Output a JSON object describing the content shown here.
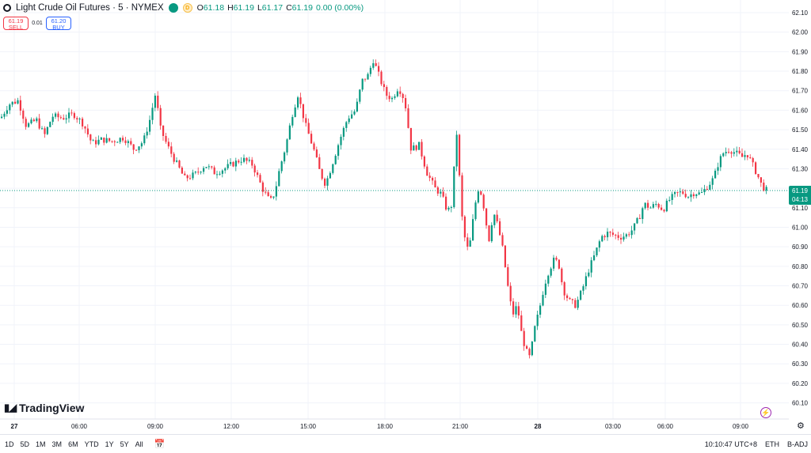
{
  "header": {
    "title": "Light Crude Oil Futures · 5 · NYMEX",
    "badge_green": "",
    "badge_d": "D",
    "ohlc": {
      "o_label": "O",
      "o_value": "61.18",
      "h_label": "H",
      "h_value": "61.19",
      "l_label": "L",
      "l_value": "61.17",
      "c_label": "C",
      "c_value": "61.19",
      "change": "0.00 (0.00%)"
    }
  },
  "trade": {
    "sell_price": "61.19",
    "sell_label": "SELL",
    "spread": "0.01",
    "buy_price": "61.20",
    "buy_label": "BUY"
  },
  "price_axis": {
    "ticks": [
      "62.10",
      "62.00",
      "61.90",
      "61.80",
      "61.70",
      "61.60",
      "61.50",
      "61.40",
      "61.30",
      "61.20",
      "61.10",
      "61.00",
      "60.90",
      "60.80",
      "60.70",
      "60.60",
      "60.50",
      "60.40",
      "60.30",
      "60.20",
      "60.10"
    ],
    "current_price": "61.19",
    "countdown": "04:13"
  },
  "time_axis": {
    "ticks": [
      "27",
      "06:00",
      "09:00",
      "12:00",
      "15:00",
      "18:00",
      "21:00",
      "28",
      "03:00",
      "06:00",
      "09:00"
    ]
  },
  "brand": "TradingView",
  "bottom": {
    "ranges": [
      "1D",
      "5D",
      "1M",
      "3M",
      "6M",
      "YTD",
      "1Y",
      "5Y",
      "All"
    ],
    "clock": "10:10:47 UTC+8",
    "session": "ETH",
    "adjust": "B-ADJ"
  },
  "colors": {
    "up": "#089981",
    "down": "#f23645",
    "accent": "#2962ff"
  },
  "icons": {
    "bolt": "lightning-icon",
    "settings": "gear-icon",
    "calendar": "calendar-range-icon"
  },
  "chart_data": {
    "type": "candlestick",
    "ylim": [
      60.05,
      62.15
    ],
    "x_ticks": [
      "27",
      "06:00",
      "09:00",
      "12:00",
      "15:00",
      "18:00",
      "21:00",
      "28",
      "03:00",
      "06:00",
      "09:00"
    ],
    "path": [
      [
        0,
        61.56
      ],
      [
        10,
        61.63
      ],
      [
        22,
        61.65
      ],
      [
        32,
        61.52
      ],
      [
        45,
        61.55
      ],
      [
        55,
        61.47
      ],
      [
        65,
        61.57
      ],
      [
        78,
        61.56
      ],
      [
        92,
        61.58
      ],
      [
        104,
        61.53
      ],
      [
        115,
        61.43
      ],
      [
        128,
        61.45
      ],
      [
        140,
        61.44
      ],
      [
        155,
        61.46
      ],
      [
        168,
        61.4
      ],
      [
        180,
        61.44
      ],
      [
        188,
        61.55
      ],
      [
        196,
        61.7
      ],
      [
        200,
        61.52
      ],
      [
        210,
        61.42
      ],
      [
        220,
        61.34
      ],
      [
        232,
        61.25
      ],
      [
        245,
        61.27
      ],
      [
        258,
        61.32
      ],
      [
        270,
        61.28
      ],
      [
        282,
        61.3
      ],
      [
        295,
        61.33
      ],
      [
        305,
        61.35
      ],
      [
        318,
        61.32
      ],
      [
        330,
        61.2
      ],
      [
        340,
        61.13
      ],
      [
        346,
        61.18
      ],
      [
        352,
        61.3
      ],
      [
        360,
        61.42
      ],
      [
        368,
        61.58
      ],
      [
        375,
        61.68
      ],
      [
        385,
        61.52
      ],
      [
        395,
        61.4
      ],
      [
        403,
        61.28
      ],
      [
        410,
        61.22
      ],
      [
        418,
        61.32
      ],
      [
        428,
        61.45
      ],
      [
        438,
        61.56
      ],
      [
        448,
        61.6
      ],
      [
        456,
        61.75
      ],
      [
        464,
        61.78
      ],
      [
        470,
        61.86
      ],
      [
        478,
        61.77
      ],
      [
        486,
        61.68
      ],
      [
        494,
        61.66
      ],
      [
        502,
        61.72
      ],
      [
        510,
        61.65
      ],
      [
        518,
        61.4
      ],
      [
        528,
        61.42
      ],
      [
        538,
        61.28
      ],
      [
        548,
        61.2
      ],
      [
        556,
        61.17
      ],
      [
        564,
        61.08
      ],
      [
        570,
        61.12
      ],
      [
        575,
        61.52
      ],
      [
        582,
        61.06
      ],
      [
        588,
        60.88
      ],
      [
        593,
        60.93
      ],
      [
        598,
        61.1
      ],
      [
        604,
        61.22
      ],
      [
        610,
        61.1
      ],
      [
        616,
        60.93
      ],
      [
        622,
        61.08
      ],
      [
        628,
        61.0
      ],
      [
        634,
        60.88
      ],
      [
        640,
        60.7
      ],
      [
        646,
        60.55
      ],
      [
        652,
        60.6
      ],
      [
        658,
        60.44
      ],
      [
        664,
        60.36
      ],
      [
        668,
        60.33
      ],
      [
        674,
        60.48
      ],
      [
        680,
        60.58
      ],
      [
        686,
        60.7
      ],
      [
        692,
        60.78
      ],
      [
        698,
        60.83
      ],
      [
        704,
        60.82
      ],
      [
        710,
        60.68
      ],
      [
        718,
        60.62
      ],
      [
        726,
        60.6
      ],
      [
        734,
        60.68
      ],
      [
        742,
        60.78
      ],
      [
        750,
        60.86
      ],
      [
        758,
        60.95
      ],
      [
        766,
        60.97
      ],
      [
        774,
        60.96
      ],
      [
        782,
        60.95
      ],
      [
        790,
        60.96
      ],
      [
        798,
        60.99
      ],
      [
        806,
        61.05
      ],
      [
        812,
        61.12
      ],
      [
        820,
        61.1
      ],
      [
        828,
        61.12
      ],
      [
        836,
        61.09
      ],
      [
        844,
        61.14
      ],
      [
        852,
        61.17
      ],
      [
        860,
        61.18
      ],
      [
        868,
        61.16
      ],
      [
        876,
        61.18
      ],
      [
        884,
        61.17
      ],
      [
        892,
        61.21
      ],
      [
        900,
        61.25
      ],
      [
        906,
        61.33
      ],
      [
        912,
        61.38
      ],
      [
        920,
        61.4
      ],
      [
        928,
        61.38
      ],
      [
        936,
        61.36
      ],
      [
        942,
        61.38
      ],
      [
        948,
        61.33
      ],
      [
        954,
        61.28
      ],
      [
        960,
        61.22
      ],
      [
        966,
        61.19
      ]
    ]
  }
}
